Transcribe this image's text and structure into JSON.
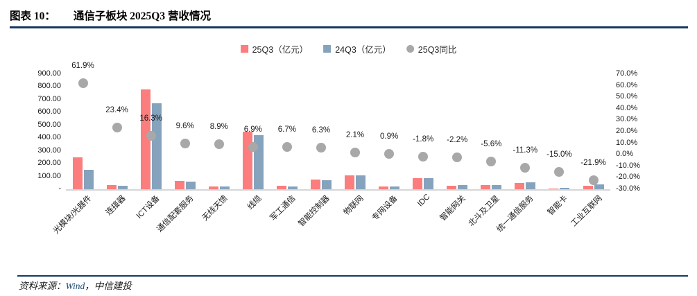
{
  "title": {
    "label": "图表 10：",
    "text": "通信子板块 2025Q3 营收情况"
  },
  "colors": {
    "accent_navy": "#17375E",
    "bar_25q3": "#FC7D7D",
    "bar_24q3": "#85A3BC",
    "dot_yoy": "#A8A8A8",
    "axis_line": "#D6D6D6"
  },
  "legend": [
    {
      "label": "25Q3（亿元）",
      "shape": "square",
      "color": "#FC7D7D"
    },
    {
      "label": "24Q3（亿元）",
      "shape": "square",
      "color": "#85A3BC"
    },
    {
      "label": "25Q3同比",
      "shape": "circle",
      "color": "#A8A8A8"
    }
  ],
  "chart_data": {
    "type": "bar",
    "subtype": "grouped bars with secondary-axis scatter (combo)",
    "categories": [
      "光模块/光器件",
      "连接器",
      "ICT设备",
      "通信配套服务",
      "无线天馈",
      "线缆",
      "军工通信",
      "智能控制器",
      "物联网",
      "专网设备",
      "IDC",
      "智能网关",
      "北斗及卫星",
      "统一通信服务",
      "智能卡",
      "工业互联网"
    ],
    "series": [
      {
        "name": "25Q3（亿元）",
        "type": "bar",
        "axis": "left",
        "color": "#FC7D7D",
        "values": [
          250,
          33,
          782,
          65,
          24,
          452,
          25,
          76,
          110,
          24,
          85,
          30,
          33,
          50,
          8,
          28
        ]
      },
      {
        "name": "24Q3（亿元）",
        "type": "bar",
        "axis": "left",
        "color": "#85A3BC",
        "values": [
          154,
          27,
          672,
          59,
          22,
          423,
          23,
          72,
          108,
          24,
          87,
          31,
          35,
          56,
          9,
          36
        ]
      },
      {
        "name": "25Q3同比",
        "type": "scatter",
        "axis": "right",
        "color": "#A8A8A8",
        "values": [
          61.9,
          23.4,
          16.3,
          9.6,
          8.9,
          6.9,
          6.7,
          6.3,
          2.1,
          0.9,
          -1.8,
          -2.2,
          -5.6,
          -11.3,
          -15.0,
          -21.9
        ]
      }
    ],
    "point_labels": [
      "61.9%",
      "23.4%",
      "16.3%",
      "9.6%",
      "8.9%",
      "6.9%",
      "6.7%",
      "6.3%",
      "2.1%",
      "0.9%",
      "-1.8%",
      "-2.2%",
      "-5.6%",
      "-11.3%",
      "-15.0%",
      "-21.9%"
    ],
    "left_axis": {
      "ticks": [
        "900.00",
        "800.00",
        "700.00",
        "600.00",
        "500.00",
        "400.00",
        "300.00",
        "200.00",
        "100.00",
        "-"
      ],
      "min": 0,
      "max": 900
    },
    "right_axis": {
      "ticks": [
        "70.0%",
        "60.0%",
        "50.0%",
        "40.0%",
        "30.0%",
        "20.0%",
        "10.0%",
        "0.0%",
        "-10.0%",
        "-20.0%",
        "-30.0%"
      ],
      "min": -30,
      "max": 70
    },
    "grid": "off",
    "legend_position": "top-center",
    "x_label_rotation_deg": 45
  },
  "footer": {
    "prefix": "资料来源：",
    "source": "Wind",
    "separator": "，",
    "org": "中信建投"
  }
}
